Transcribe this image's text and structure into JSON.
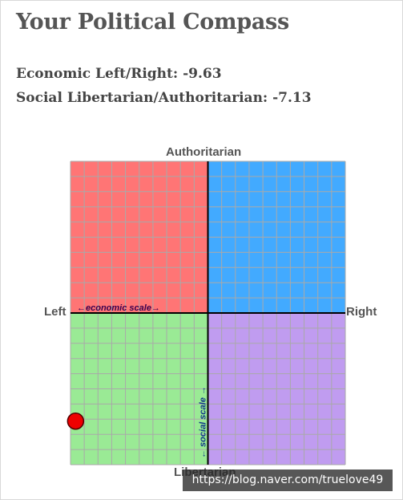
{
  "page": {
    "title": "Your Political Compass",
    "economic_text": "Economic Left/Right: -9.63",
    "social_text": "Social Libertarian/Authoritarian: -7.13",
    "watermark": "https://blog.naver.com/truelove49"
  },
  "chart_data": {
    "type": "scatter",
    "title": "Your Political Compass",
    "axes": {
      "top": "Authoritarian",
      "bottom": "Libertarian",
      "left": "Left",
      "right": "Right",
      "economic_scale_label": "←economic scale→",
      "social_scale_label": "← social scale →"
    },
    "xlim": [
      -10,
      10
    ],
    "ylim": [
      -10,
      10
    ],
    "grid": true,
    "grid_divisions": 20,
    "quadrant_colors": {
      "top_left": "#ff7575",
      "top_right": "#42aaff",
      "bottom_left": "#9aea95",
      "bottom_right": "#c09cf0"
    },
    "point": {
      "x": -9.63,
      "y": -7.13,
      "color": "#ee0000"
    },
    "colors": {
      "grid": "#a9a9a9",
      "axis": "#000000"
    }
  }
}
